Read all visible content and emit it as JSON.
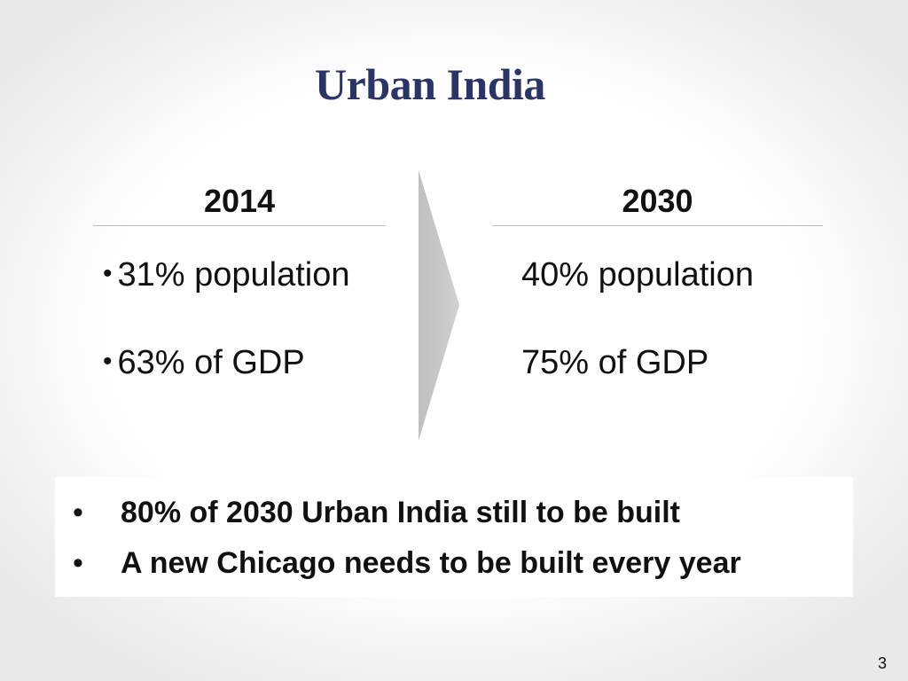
{
  "slide": {
    "title": "Urban India",
    "page_number": "3"
  },
  "left_column": {
    "heading": "2014",
    "items": [
      "31% population",
      "63% of GDP"
    ]
  },
  "right_column": {
    "heading": "2030",
    "items": [
      "40% population",
      "75% of GDP"
    ]
  },
  "bottom_bullets": [
    "80% of 2030 Urban India still to be built",
    "A new Chicago needs to be built every year"
  ],
  "colors": {
    "title": "#2b3466",
    "arrow": "#c8c8c8",
    "rule": "#bdbdbd"
  }
}
